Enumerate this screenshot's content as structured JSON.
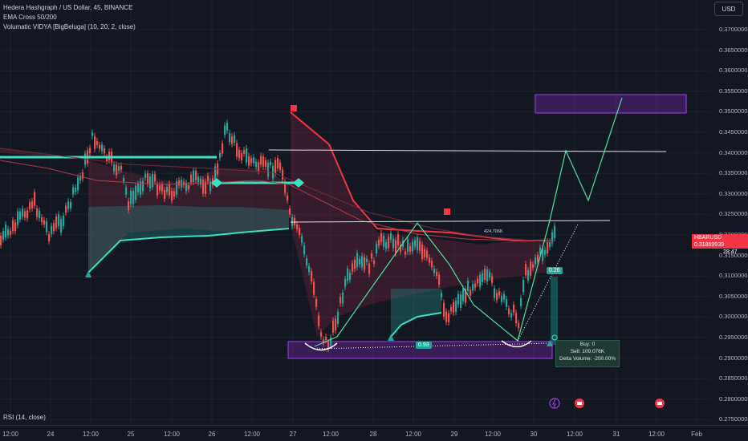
{
  "header": {
    "symbol_line": "Hedera Hashgraph / US Dollar, 45, BINANCE",
    "indicator_1": "EMA Cross 50/200",
    "indicator_2": "Volumatic VIDYA [BigBeluga] (10, 20, 2, close)"
  },
  "currency_button": "USD",
  "rsi_label": "RSI (14, close)",
  "price_axis": [
    "0.37000000",
    "0.36500000",
    "0.36000000",
    "0.35500000",
    "0.35000000",
    "0.34500000",
    "0.34000000",
    "0.33500000",
    "0.33000000",
    "0.32500000",
    "0.32000000",
    "0.31500000",
    "0.31000000",
    "0.30500000",
    "0.30000000",
    "0.29500000",
    "0.29000000",
    "0.28500000",
    "0.28000000",
    "0.27500000"
  ],
  "price_tag": {
    "symbol": "HBARUSD",
    "price": "0.31869939",
    "countdown": "28:47"
  },
  "time_axis": [
    "12:00",
    "24",
    "12:00",
    "25",
    "12:00",
    "26",
    "12:00",
    "27",
    "12:00",
    "28",
    "12:00",
    "29",
    "12:00",
    "30",
    "12:00",
    "31",
    "12:00",
    "Feb"
  ],
  "tags": {
    "vidya_delta_1": "0.93",
    "vidya_delta_2": "0.26",
    "volume_label": "424.706K"
  },
  "delta_box": {
    "buy": "Buy: 0",
    "sell": "Sell: 109.076K",
    "delta": "Delta Volume: -200.00%"
  },
  "colors": {
    "bg": "#131722",
    "up": "#26a69a",
    "down": "#ef5350",
    "teal": "#3ce0c0",
    "purple": "#a040f0",
    "tag_red": "#f23645"
  }
}
